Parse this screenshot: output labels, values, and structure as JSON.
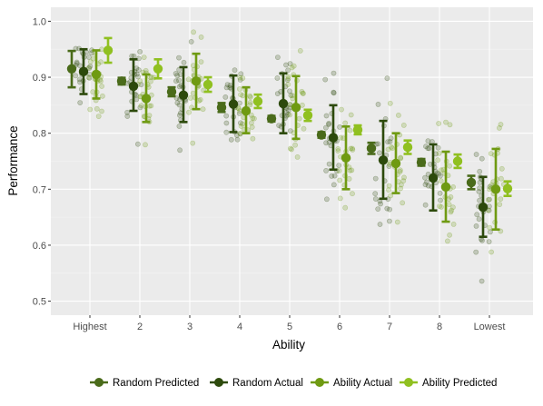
{
  "chart_data": {
    "type": "scatter",
    "xlabel": "Ability",
    "ylabel": "Performance",
    "categories": [
      "Highest",
      "2",
      "3",
      "4",
      "5",
      "6",
      "7",
      "8",
      "Lowest"
    ],
    "yticks": [
      "0.5",
      "0.6",
      "0.7",
      "0.8",
      "0.9",
      "1.0"
    ],
    "ylim": [
      0.475,
      1.025
    ],
    "grid": true,
    "legend_position": "bottom",
    "series": [
      {
        "name": "Random Predicted",
        "color": "#4a6b1a",
        "values": [
          0.915,
          0.893,
          0.874,
          0.846,
          0.826,
          0.797,
          0.773,
          0.748,
          0.712
        ],
        "lower": [
          0.882,
          0.887,
          0.866,
          0.838,
          0.821,
          0.792,
          0.763,
          0.742,
          0.7
        ],
        "upper": [
          0.947,
          0.899,
          0.882,
          0.854,
          0.831,
          0.802,
          0.783,
          0.754,
          0.724
        ]
      },
      {
        "name": "Random Actual",
        "color": "#2d4a0c",
        "values": [
          0.91,
          0.884,
          0.868,
          0.852,
          0.853,
          0.792,
          0.752,
          0.72,
          0.668
        ],
        "lower": [
          0.87,
          0.84,
          0.82,
          0.802,
          0.8,
          0.735,
          0.683,
          0.662,
          0.615
        ],
        "upper": [
          0.95,
          0.932,
          0.918,
          0.903,
          0.907,
          0.85,
          0.822,
          0.78,
          0.722
        ]
      },
      {
        "name": "Ability Actual",
        "color": "#6f9a12",
        "values": [
          0.905,
          0.862,
          0.893,
          0.84,
          0.846,
          0.756,
          0.746,
          0.704,
          0.7
        ],
        "lower": [
          0.862,
          0.82,
          0.843,
          0.8,
          0.79,
          0.7,
          0.693,
          0.642,
          0.628
        ],
        "upper": [
          0.948,
          0.905,
          0.942,
          0.882,
          0.902,
          0.812,
          0.8,
          0.767,
          0.772
        ]
      },
      {
        "name": "Ability Predicted",
        "color": "#90c020",
        "values": [
          0.948,
          0.915,
          0.887,
          0.857,
          0.832,
          0.806,
          0.775,
          0.75,
          0.701
        ],
        "lower": [
          0.926,
          0.898,
          0.874,
          0.845,
          0.822,
          0.798,
          0.763,
          0.738,
          0.688
        ],
        "upper": [
          0.97,
          0.932,
          0.9,
          0.869,
          0.842,
          0.814,
          0.787,
          0.762,
          0.714
        ]
      }
    ],
    "legend_order": [
      0,
      1,
      2,
      3
    ]
  }
}
